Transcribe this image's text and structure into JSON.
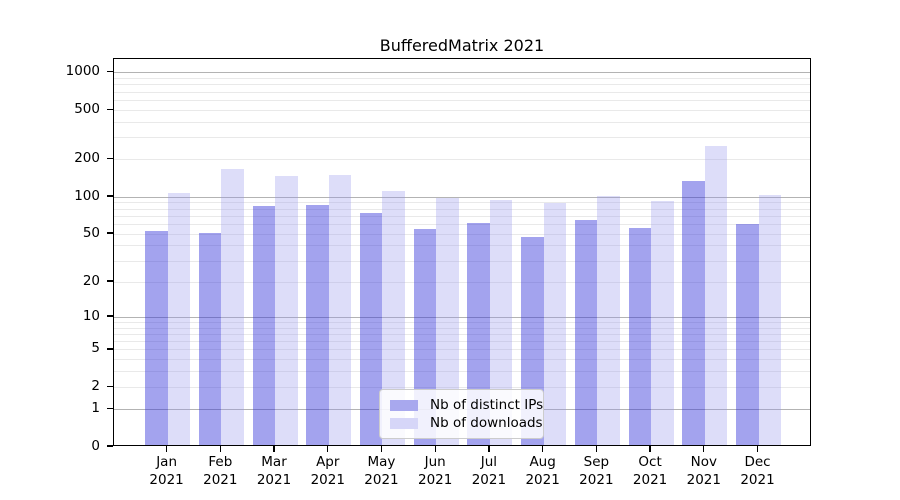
{
  "title": "BufferedMatrix 2021",
  "chart_data": {
    "type": "bar",
    "title": "BufferedMatrix 2021",
    "categories": [
      "Jan",
      "Feb",
      "Mar",
      "Apr",
      "May",
      "Jun",
      "Jul",
      "Aug",
      "Sep",
      "Oct",
      "Nov",
      "Dec"
    ],
    "category_year": "2021",
    "series": [
      {
        "name": "Nb of distinct IPs",
        "slug": "distinct-ips",
        "color": "rgba(50,50,218,0.45)",
        "swatch_color": "#a8a8ee",
        "values": [
          53,
          51,
          85,
          87,
          74,
          55,
          61,
          47,
          65,
          56,
          135,
          60
        ]
      },
      {
        "name": "Nb of downloads",
        "slug": "downloads",
        "color": "rgba(150,150,235,0.32)",
        "swatch_color": "#d6d6f8",
        "values": [
          108,
          168,
          148,
          150,
          113,
          99,
          95,
          90,
          102,
          93,
          258,
          104
        ]
      }
    ],
    "yticks": [
      0,
      1,
      2,
      5,
      10,
      20,
      50,
      100,
      200,
      500,
      1000
    ],
    "scale": "log1p",
    "ylim": [
      0,
      1270
    ],
    "grid": true,
    "legend_position": "lower center"
  },
  "colors": {
    "major_grid": "#b3b3b3",
    "minor_grid": "#e9e9e9",
    "spine": "#000000",
    "legend_border": "#cccccc"
  }
}
